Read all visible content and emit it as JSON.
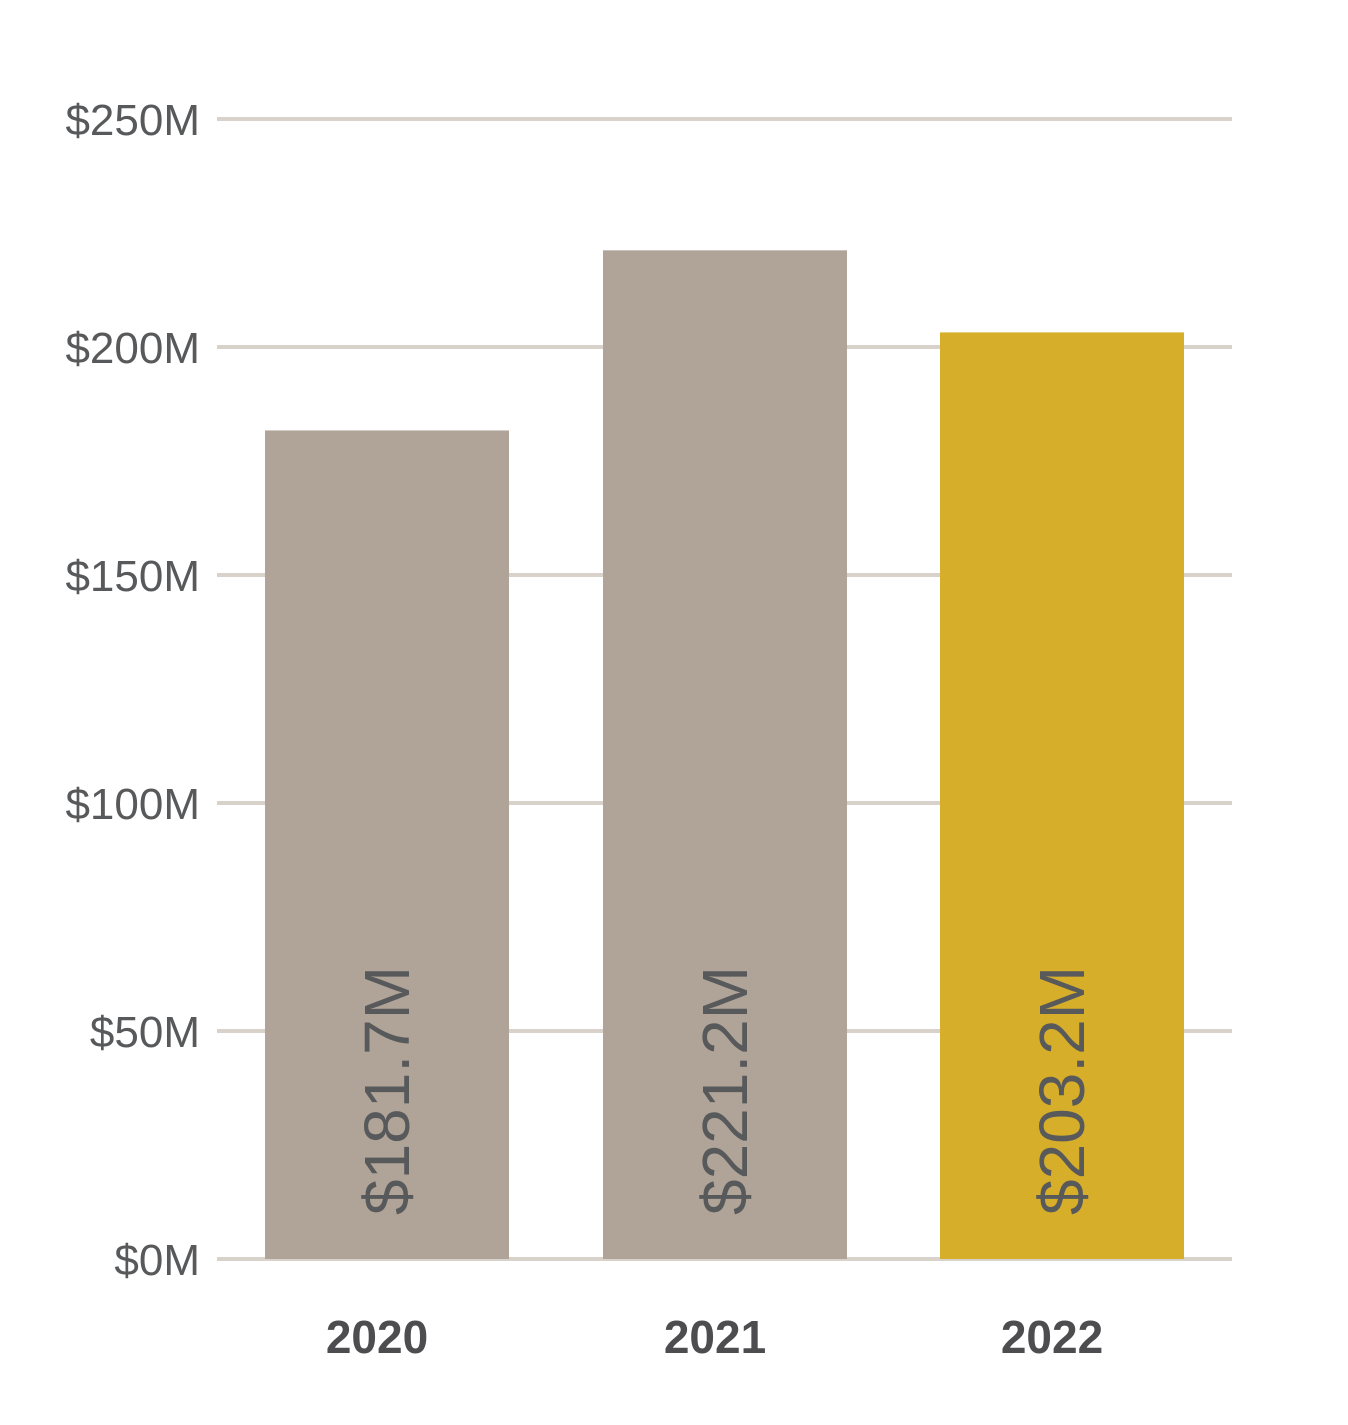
{
  "chart_data": {
    "type": "bar",
    "title": "",
    "xlabel": "",
    "ylabel": "",
    "categories": [
      "2020",
      "2021",
      "2022"
    ],
    "values": [
      181.7,
      221.2,
      203.2
    ],
    "value_labels": [
      "$181.7M",
      "$221.2M",
      "$203.2M"
    ],
    "y_ticks": [
      0,
      50,
      100,
      150,
      200,
      250
    ],
    "y_tick_labels": [
      "$0M",
      "$50M",
      "$100M",
      "$150M",
      "$200M",
      "$250M"
    ],
    "ylim": [
      0,
      250
    ],
    "grid": true,
    "colors": {
      "default_bar": "#b0a498",
      "highlight_bar": "#d6ae2a",
      "gridline": "#d9d2cb",
      "text": "#58595b"
    },
    "highlight_index": 2
  }
}
